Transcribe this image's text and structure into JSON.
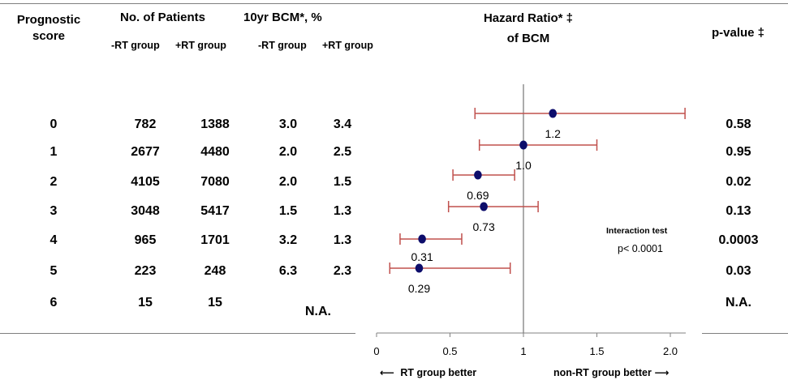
{
  "header": {
    "score_line1": "Prognostic",
    "score_line2": "score",
    "patients_title": "No. of Patients",
    "bcm_title": "10yr BCM*, %",
    "minus_rt": "-RT group",
    "plus_rt": "+RT group",
    "hr_line1": "Hazard Ratio* ‡",
    "hr_line2": "of  BCM",
    "pvalue": "p-value ‡"
  },
  "rows": [
    {
      "score": "0",
      "n_minus": "782",
      "n_plus": "1388",
      "bcm_minus": "3.0",
      "bcm_plus": "3.4",
      "p": "0.58"
    },
    {
      "score": "1",
      "n_minus": "2677",
      "n_plus": "4480",
      "bcm_minus": "2.0",
      "bcm_plus": "2.5",
      "p": "0.95"
    },
    {
      "score": "2",
      "n_minus": "4105",
      "n_plus": "7080",
      "bcm_minus": "2.0",
      "bcm_plus": "1.5",
      "p": "0.02"
    },
    {
      "score": "3",
      "n_minus": "3048",
      "n_plus": "5417",
      "bcm_minus": "1.5",
      "bcm_plus": "1.3",
      "p": "0.13"
    },
    {
      "score": "4",
      "n_minus": "965",
      "n_plus": "1701",
      "bcm_minus": "3.2",
      "bcm_plus": "1.3",
      "p": "0.0003"
    },
    {
      "score": "5",
      "n_minus": "223",
      "n_plus": "248",
      "bcm_minus": "6.3",
      "bcm_plus": "2.3",
      "p": "0.03"
    },
    {
      "score": "6",
      "n_minus": "15",
      "n_plus": "15",
      "bcm_na": "N.A.",
      "p": "N.A."
    }
  ],
  "annotation": {
    "title": "Interaction test",
    "value": "p< 0.0001"
  },
  "footer": {
    "left": "RT group better",
    "right": "non-RT group better"
  },
  "colors": {
    "point": "#0d0d6b",
    "ci": "#c0504d",
    "reference": "#808080",
    "axis": "#808080"
  },
  "chart_data": {
    "type": "scatter",
    "title": "Hazard Ratio of BCM",
    "xlabel": "",
    "ylabel": "Prognostic score",
    "xlim": [
      0,
      2.0
    ],
    "xticks": [
      0,
      0.5,
      1,
      1.5,
      2.0
    ],
    "xtick_labels": [
      "0",
      "0.5",
      "1",
      "1.5",
      "2.0"
    ],
    "reference_line": 1,
    "series": [
      {
        "name": "Hazard Ratio",
        "points": [
          {
            "score": "0",
            "hr": 1.2,
            "label": "1.2",
            "ci": [
              0.67,
              2.1
            ]
          },
          {
            "score": "1",
            "hr": 1.0,
            "label": "1.0",
            "ci": [
              0.7,
              1.5
            ]
          },
          {
            "score": "2",
            "hr": 0.69,
            "label": "0.69",
            "ci": [
              0.52,
              0.94
            ]
          },
          {
            "score": "3",
            "hr": 0.73,
            "label": "0.73",
            "ci": [
              0.49,
              1.1
            ]
          },
          {
            "score": "4",
            "hr": 0.31,
            "label": "0.31",
            "ci": [
              0.16,
              0.58
            ]
          },
          {
            "score": "5",
            "hr": 0.29,
            "label": "0.29",
            "ci": [
              0.09,
              0.91
            ]
          }
        ]
      }
    ]
  }
}
